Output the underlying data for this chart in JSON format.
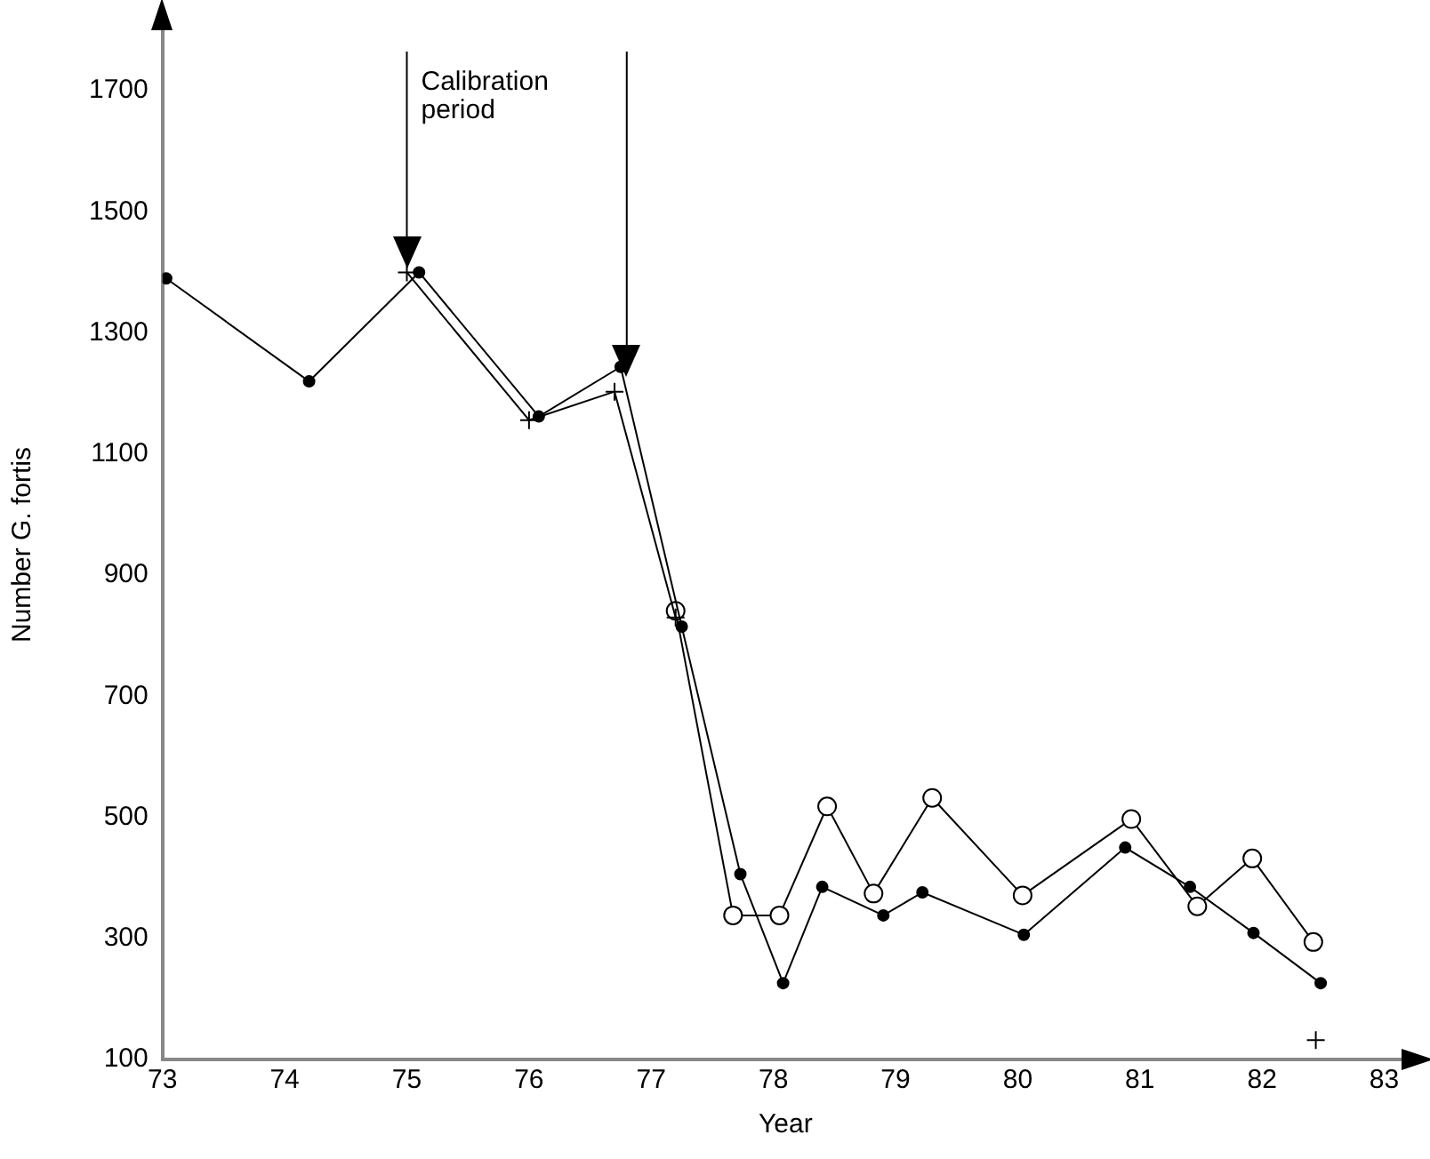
{
  "chart_data": {
    "type": "line",
    "xlabel": "Year",
    "ylabel": "Number G. fortis",
    "xlim": [
      73,
      83.2
    ],
    "xticks": [
      73,
      74,
      75,
      76,
      77,
      78,
      79,
      80,
      81,
      82,
      83
    ],
    "ylim": [
      100,
      1800
    ],
    "yticks": [
      100,
      300,
      500,
      700,
      900,
      1100,
      1300,
      1500,
      1700
    ],
    "grid": false,
    "legend": false,
    "series": [
      {
        "color": "#000000",
        "marker": "circle",
        "x": [
          73.03,
          74.2,
          75.1,
          76.08,
          76.75,
          77.25,
          77.73,
          78.08,
          78.4,
          78.9,
          79.22,
          80.05,
          80.88,
          81.41,
          81.93,
          82.48
        ],
        "values": [
          1390,
          1220,
          1400,
          1162,
          1244,
          815,
          406,
          226,
          385,
          338,
          376,
          306,
          450,
          385,
          309,
          226
        ]
      },
      {
        "color": "#000000",
        "marker": "cross",
        "x": [
          75,
          76,
          76.7,
          77.2
        ],
        "values": [
          1400,
          1156,
          1203,
          830
        ]
      },
      {
        "color": "#000000",
        "marker": "circle",
        "x": [
          77.2,
          77.67,
          78.05,
          78.44,
          78.82,
          79.3,
          80.04,
          80.93,
          81.47,
          81.92,
          82.42
        ],
        "values": [
          841,
          338,
          338,
          518,
          374,
          532,
          371,
          497,
          353,
          432,
          294
        ]
      },
      {
        "type": "scatter",
        "color": "#000000",
        "marker": "cross",
        "x": [
          82.44
        ],
        "values": [
          132
        ]
      }
    ],
    "ref_lines": [
      {
        "axis": "x",
        "value": 75,
        "label": "Calibration period"
      },
      {
        "axis": "x",
        "value": 76.8
      }
    ]
  }
}
